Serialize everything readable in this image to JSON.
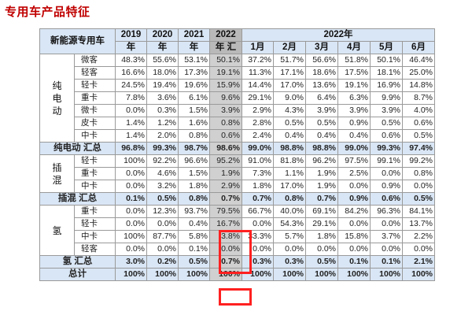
{
  "title": "专用车产品特征",
  "header": {
    "corner": "新能源专用车",
    "years": [
      {
        "year": "2019",
        "suffix": "年"
      },
      {
        "year": "2020",
        "suffix": "年"
      },
      {
        "year": "2021",
        "suffix": "年"
      },
      {
        "year": "2022",
        "suffix": "年 汇"
      }
    ],
    "group": "2022年",
    "months": [
      "1月",
      "2月",
      "3月",
      "4月",
      "5月",
      "6月"
    ]
  },
  "categories": {
    "pure_electric": "纯电动",
    "plugin": "插混",
    "hydrogen": "氢"
  },
  "pure_electric_rows": [
    {
      "label": "微客",
      "values": [
        "48.3%",
        "55.6%",
        "53.1%",
        "50.1%",
        "37.2%",
        "51.7%",
        "56.6%",
        "51.8%",
        "50.1%",
        "46.4%"
      ]
    },
    {
      "label": "轻客",
      "values": [
        "16.6%",
        "18.0%",
        "17.3%",
        "19.1%",
        "11.3%",
        "17.1%",
        "18.6%",
        "17.5%",
        "18.1%",
        "25.0%"
      ]
    },
    {
      "label": "轻卡",
      "values": [
        "24.5%",
        "19.4%",
        "19.6%",
        "15.9%",
        "14.4%",
        "17.0%",
        "13.6%",
        "19.1%",
        "16.9%",
        "14.8%"
      ]
    },
    {
      "label": "重卡",
      "values": [
        "7.8%",
        "3.6%",
        "6.1%",
        "9.6%",
        "29.1%",
        "9.0%",
        "6.4%",
        "6.3%",
        "9.9%",
        "8.7%"
      ]
    },
    {
      "label": "微卡",
      "values": [
        "0.0%",
        "0.3%",
        "1.5%",
        "3.9%",
        "2.9%",
        "4.3%",
        "3.9%",
        "3.9%",
        "3.9%",
        "4.0%"
      ]
    },
    {
      "label": "皮卡",
      "values": [
        "1.4%",
        "1.2%",
        "1.6%",
        "0.8%",
        "2.8%",
        "0.5%",
        "0.5%",
        "0.9%",
        "0.5%",
        "0.6%"
      ]
    },
    {
      "label": "中卡",
      "values": [
        "1.4%",
        "2.0%",
        "0.8%",
        "0.6%",
        "2.4%",
        "0.4%",
        "0.4%",
        "0.4%",
        "0.6%",
        "0.5%"
      ]
    }
  ],
  "pure_electric_total": {
    "label": "纯电动 汇总",
    "values": [
      "96.8%",
      "99.3%",
      "98.7%",
      "98.6%",
      "99.0%",
      "98.8%",
      "98.8%",
      "99.0%",
      "99.3%",
      "97.4%"
    ]
  },
  "plugin_rows": [
    {
      "label": "轻卡",
      "values": [
        "100%",
        "92.2%",
        "96.6%",
        "95.2%",
        "91.0%",
        "81.8%",
        "96.2%",
        "97.5%",
        "99.1%",
        "99.2%"
      ]
    },
    {
      "label": "重卡",
      "values": [
        "0.0%",
        "4.6%",
        "1.5%",
        "1.9%",
        "7.3%",
        "1.1%",
        "1.9%",
        "2.5%",
        "0.0%",
        "0.8%"
      ]
    },
    {
      "label": "中卡",
      "values": [
        "0.0%",
        "3.2%",
        "1.8%",
        "2.9%",
        "1.8%",
        "17.0%",
        "1.9%",
        "0.0%",
        "0.9%",
        "0.0%"
      ]
    }
  ],
  "plugin_total": {
    "label": "插混 汇总",
    "values": [
      "0.1%",
      "0.5%",
      "0.8%",
      "0.7%",
      "0.7%",
      "0.8%",
      "0.7%",
      "0.9%",
      "0.6%",
      "0.5%"
    ]
  },
  "hydrogen_rows": [
    {
      "label": "重卡",
      "values": [
        "0.0%",
        "12.3%",
        "93.7%",
        "79.5%",
        "66.7%",
        "40.0%",
        "69.1%",
        "84.2%",
        "96.3%",
        "84.1%"
      ]
    },
    {
      "label": "轻卡",
      "values": [
        "0.0%",
        "0.0%",
        "0.4%",
        "16.7%",
        "0.0%",
        "54.3%",
        "29.1%",
        "0.0%",
        "0.0%",
        "13.7%"
      ]
    },
    {
      "label": "中卡",
      "values": [
        "100%",
        "87.7%",
        "5.8%",
        "3.8%",
        "33.3%",
        "5.7%",
        "1.8%",
        "15.8%",
        "3.7%",
        "2.2%"
      ]
    },
    {
      "label": "轻客",
      "values": [
        "0.0%",
        "0.0%",
        "0.1%",
        "0.0%",
        "0.0%",
        "0.0%",
        "0.0%",
        "0.0%",
        "0.0%",
        "0.0%"
      ]
    }
  ],
  "hydrogen_total": {
    "label": "氢 汇总",
    "values": [
      "3.0%",
      "0.2%",
      "0.5%",
      "0.7%",
      "0.3%",
      "0.3%",
      "0.5%",
      "0.1%",
      "0.1%",
      "2.1%"
    ]
  },
  "grand_total": {
    "label": "总计",
    "values": [
      "100%",
      "100%",
      "100%",
      "100%",
      "100%",
      "100%",
      "100%",
      "100%",
      "100%",
      "100%"
    ]
  },
  "colors": {
    "header_fill": "#d9e6f5",
    "column_2022_fill": "#d0d0d0",
    "highlight_box": "#ff2020",
    "title": "#c00000"
  }
}
